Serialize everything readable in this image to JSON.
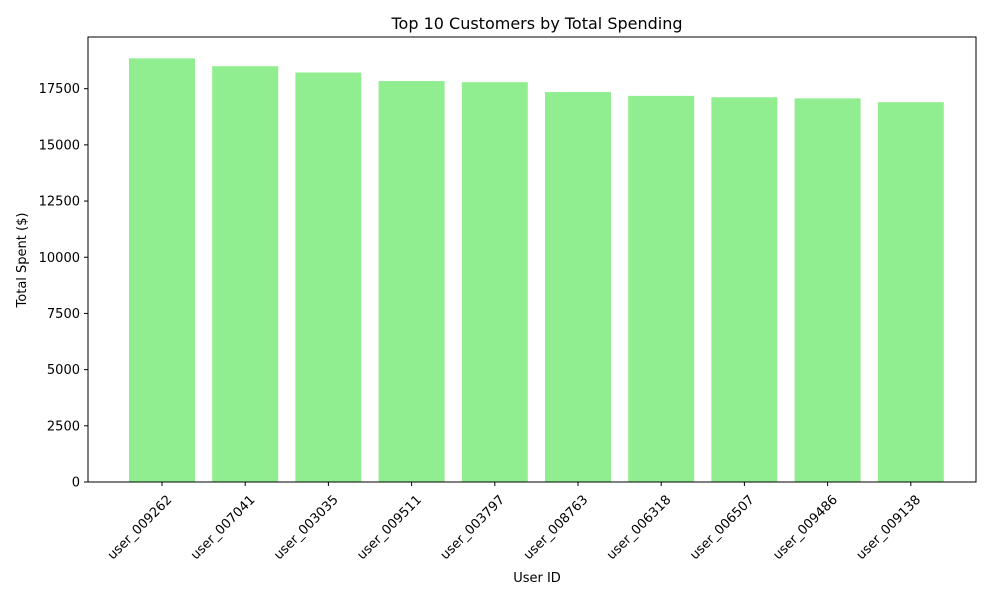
{
  "chart_data": {
    "type": "bar",
    "title": "Top 10 Customers by Total Spending",
    "xlabel": "User ID",
    "ylabel": "Total Spent ($)",
    "categories": [
      "user_009262",
      "user_007041",
      "user_003035",
      "user_009511",
      "user_003797",
      "user_008763",
      "user_006318",
      "user_006507",
      "user_009486",
      "user_009138"
    ],
    "values": [
      18850,
      18500,
      18220,
      17840,
      17790,
      17350,
      17180,
      17120,
      17070,
      16900
    ],
    "ylim": [
      0,
      19800
    ],
    "yticks": [
      0,
      2500,
      5000,
      7500,
      10000,
      12500,
      15000,
      17500
    ],
    "ytick_labels": [
      "0",
      "2500",
      "5000",
      "7500",
      "10000",
      "12500",
      "15000",
      "17500"
    ],
    "bar_color": "#90ee90",
    "grid": false,
    "legend": "none"
  }
}
